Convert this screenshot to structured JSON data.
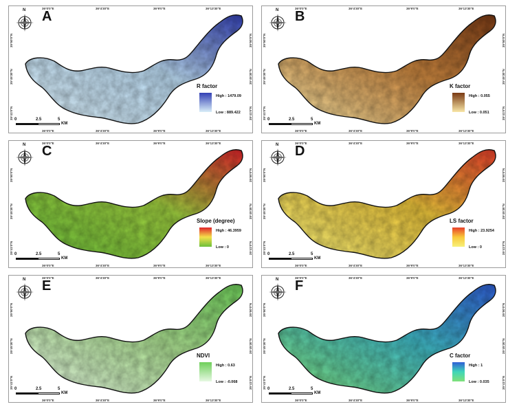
{
  "figure": {
    "panels": [
      {
        "label": "A",
        "legend_title": "R factor",
        "high": "High : 1479.09",
        "low": "Low : 889.422",
        "ramp": [
          "#3341b5",
          "#d9eef8"
        ]
      },
      {
        "label": "B",
        "legend_title": "K factor",
        "high": "High : 0.055",
        "low": "Low : 0.051",
        "ramp": [
          "#7a3a14",
          "#f8e6a6"
        ]
      },
      {
        "label": "C",
        "legend_title": "Slope (degree)",
        "high": "High : 46.3959",
        "low": "Low : 0",
        "ramp": [
          "#e0242a",
          "#f4e04a",
          "#6bbf3a"
        ]
      },
      {
        "label": "D",
        "legend_title": "LS factor",
        "high": "High : 23.9254",
        "low": "Low : 0",
        "ramp": [
          "#e8402a",
          "#f9c93a",
          "#f7f07a"
        ]
      },
      {
        "label": "E",
        "legend_title": "NDVI",
        "high": "High : 0.63",
        "low": "Low : -0.068",
        "ramp": [
          "#6fcf5a",
          "#e6f8e2"
        ]
      },
      {
        "label": "F",
        "legend_title": "C factor",
        "high": "High : 1",
        "low": "Low : 0.035",
        "ramp": [
          "#2f5fd6",
          "#3fd6b8",
          "#7fe07a"
        ]
      }
    ],
    "map_fill": [
      "#b9d8ef",
      "#c7843e",
      "#9ccc3e",
      "#e8c23a",
      "#a9dc8f",
      "#3fb7c3"
    ],
    "scale": {
      "zero": "0",
      "mid": "2.5",
      "end": "5",
      "unit": "KM"
    },
    "top_ticks": [
      "36°0'0\"E",
      "36°4'30\"E",
      "36°9'0\"E",
      "36°13'30\"E"
    ],
    "bottom_ticks": [
      "36°0'0\"E",
      "36°4'30\"E",
      "36°9'0\"E",
      "36°13'30\"E"
    ],
    "left_ticks": [
      "35°50'0\"N",
      "35°45'30\"N",
      "35°41'0\"N"
    ],
    "right_ticks": [
      "35°50'0\"N",
      "35°45'30\"N",
      "35°41'0\"N"
    ],
    "north_label": "N",
    "compass_icon": "north-arrow-compass-icon"
  }
}
